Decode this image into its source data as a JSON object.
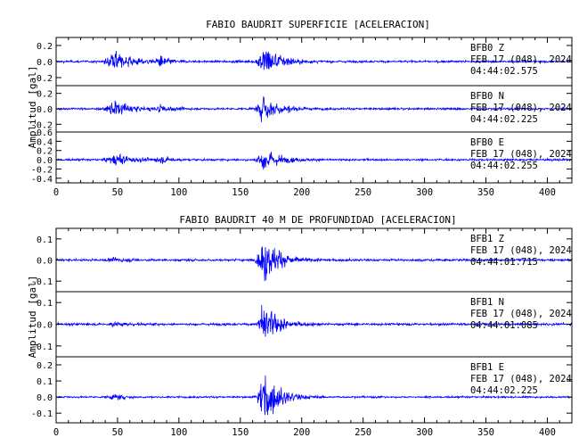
{
  "chart_data": [
    {
      "type": "line",
      "title": "FABIO BAUDRIT SUPERFICIE [ACELERACION]",
      "ylabel": "Amplitud [gal]",
      "xlim": [
        0,
        420
      ],
      "x_ticks": [
        "0",
        "50",
        "100",
        "150",
        "200",
        "250",
        "300",
        "350",
        "400"
      ],
      "series_color": "#0000ff",
      "events": [
        {
          "center": 48,
          "width": 12,
          "amp": 0.55
        },
        {
          "center": 85,
          "width": 7,
          "amp": 0.35
        },
        {
          "center": 170,
          "width": 9,
          "amp": 1.0
        }
      ],
      "traces": [
        {
          "name": "BFB0 Z",
          "station": "BFB0",
          "component": "Z",
          "date": "FEB 17 (048), 2024",
          "time": "04:44:02.575",
          "ylim": [
            -0.3,
            0.3
          ],
          "y_ticks": [
            "0.2",
            "0.0",
            "-0.2"
          ],
          "peak": 0.25,
          "noise": 0.012
        },
        {
          "name": "BFB0 N",
          "station": "BFB0",
          "component": "N",
          "date": "FEB 17 (048), 2024",
          "time": "04:44:02.225",
          "ylim": [
            -0.3,
            0.3
          ],
          "y_ticks": [
            "0.2",
            "0.0",
            "-0.2"
          ],
          "peak": 0.22,
          "noise": 0.012
        },
        {
          "name": "BFB0 E",
          "station": "BFB0",
          "component": "E",
          "date": "FEB 17 (048), 2024",
          "time": "04:44:02.255",
          "ylim": [
            -0.5,
            0.6
          ],
          "y_ticks": [
            "0.6",
            "0.4",
            "0.2",
            "0.0",
            "-0.2",
            "-0.4"
          ],
          "peak": 0.3,
          "noise": 0.02
        }
      ]
    },
    {
      "type": "line",
      "title": "FABIO BAUDRIT 40 M DE PROFUNDIDAD [ACELERACION]",
      "ylabel": "Amplitud [gal]",
      "xlim": [
        0,
        420
      ],
      "x_ticks": [
        "0",
        "50",
        "100",
        "150",
        "200",
        "250",
        "300",
        "350",
        "400"
      ],
      "series_color": "#0000ff",
      "events": [
        {
          "center": 48,
          "width": 10,
          "amp": 0.12
        },
        {
          "center": 170,
          "width": 8,
          "amp": 1.0
        }
      ],
      "traces": [
        {
          "name": "BFB1 Z",
          "station": "BFB1",
          "component": "Z",
          "date": "FEB 17 (048), 2024",
          "time": "04:44:01.715",
          "ylim": [
            -0.15,
            0.15
          ],
          "y_ticks": [
            "0.1",
            "0.0",
            "-0.1"
          ],
          "peak": 0.13,
          "noise": 0.005
        },
        {
          "name": "BFB1 N",
          "station": "BFB1",
          "component": "N",
          "date": "FEB 17 (048), 2024",
          "time": "04:44:01.085",
          "ylim": [
            -0.15,
            0.15
          ],
          "y_ticks": [
            "0.1",
            "0.0",
            "-0.1"
          ],
          "peak": 0.12,
          "noise": 0.005
        },
        {
          "name": "BFB1 E",
          "station": "BFB1",
          "component": "E",
          "date": "FEB 17 (048), 2024",
          "time": "04:44:02.225",
          "ylim": [
            -0.16,
            0.25
          ],
          "y_ticks": [
            "0.2",
            "0.1",
            "0.0",
            "-0.1"
          ],
          "peak": 0.2,
          "noise": 0.005
        }
      ]
    }
  ]
}
